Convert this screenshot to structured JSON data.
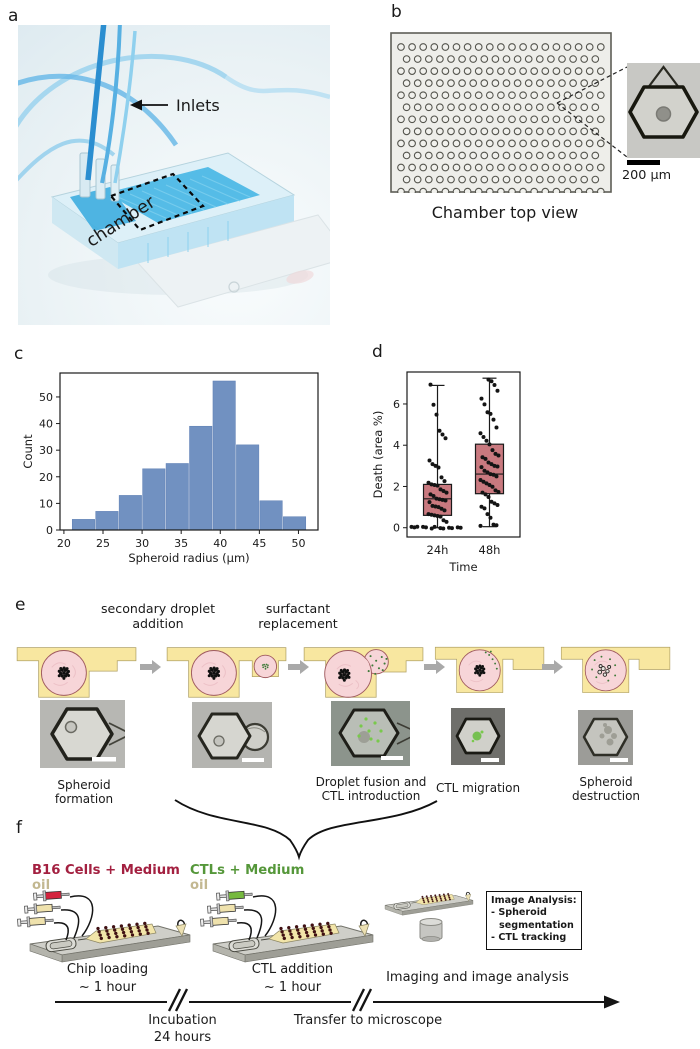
{
  "panels": {
    "a": "a",
    "b": "b",
    "c": "c",
    "d": "d",
    "e": "e",
    "f": "f"
  },
  "panel_a": {
    "inlets_label": "Inlets",
    "chamber_label": "chamber"
  },
  "panel_b": {
    "caption": "Chamber top view",
    "scale_bar_label": "200 µm",
    "anchor_array": {
      "rows": 13,
      "cols": 19
    }
  },
  "chart_data": [
    {
      "id": "spheroid-radius-histogram",
      "type": "bar",
      "title": "",
      "xlabel": "Spheroid radius (µm)",
      "ylabel": "Count",
      "bin_start": 21,
      "bin_width": 3,
      "values": [
        4,
        7,
        13,
        23,
        25,
        39,
        56,
        32,
        11,
        5
      ],
      "xticks": [
        20,
        25,
        30,
        35,
        40,
        45,
        50
      ],
      "yticks": [
        0,
        10,
        20,
        30,
        40,
        50
      ],
      "xlim": [
        19.5,
        52.5
      ],
      "ylim": [
        0,
        59
      ],
      "bar_color": "#7191c1"
    },
    {
      "id": "death-boxplot",
      "type": "box",
      "title": "",
      "xlabel": "Time",
      "ylabel": "Death (area %)",
      "categories": [
        "24h",
        "48h"
      ],
      "yticks": [
        0,
        2,
        4,
        6
      ],
      "ylim": [
        -0.45,
        7.55
      ],
      "box_color": "#c9797f",
      "series": [
        {
          "name": "24h",
          "q1": 0.6,
          "median": 1.4,
          "q3": 2.1,
          "whisker_low": 0,
          "whisker_high": 6.9,
          "points": [
            0,
            0,
            0,
            0,
            0,
            0,
            0,
            0,
            0,
            0,
            0,
            0,
            0.05,
            0.3,
            0.4,
            0.5,
            0.55,
            0.6,
            0.65,
            0.7,
            0.8,
            0.9,
            1.0,
            1.05,
            1.1,
            1.2,
            1.3,
            1.35,
            1.4,
            1.45,
            1.5,
            1.6,
            1.7,
            1.8,
            1.9,
            2.0,
            2.05,
            2.1,
            2.2,
            2.3,
            2.4,
            2.9,
            3.0,
            3.1,
            3.3,
            4.3,
            4.5,
            4.7,
            5.5,
            6.0,
            6.9
          ]
        },
        {
          "name": "48h",
          "q1": 1.65,
          "median": 2.6,
          "q3": 4.05,
          "whisker_low": 0.05,
          "whisker_high": 7.25,
          "points": [
            0.05,
            0.1,
            0.15,
            0.5,
            0.7,
            0.9,
            1.0,
            1.1,
            1.2,
            1.3,
            1.45,
            1.6,
            1.7,
            1.75,
            1.85,
            1.95,
            2.05,
            2.15,
            2.25,
            2.35,
            2.45,
            2.55,
            2.6,
            2.7,
            2.8,
            2.9,
            2.95,
            3.0,
            3.1,
            3.2,
            3.3,
            3.4,
            3.5,
            3.6,
            3.8,
            4.0,
            4.2,
            4.4,
            4.6,
            4.9,
            5.2,
            5.5,
            5.6,
            6.0,
            6.3,
            6.6,
            6.9,
            7.1,
            7.2
          ]
        }
      ]
    }
  ],
  "panel_e": {
    "arrow_labels": [
      "secondary droplet addition",
      "surfactant replacement"
    ],
    "stage_labels": [
      "Spheroid formation",
      "",
      "Droplet fusion and CTL introduction",
      "CTL migration",
      "Spheroid destruction"
    ],
    "trap_color": "#f8e7a0",
    "droplet_color": "#f7d5d8",
    "ctl_color": "#3e7a38"
  },
  "panel_f": {
    "group1": {
      "line1": "B16 Cells + Medium",
      "line2": "oil",
      "caption": "Chip loading",
      "duration": "~ 1 hour",
      "label_color": "#a32040",
      "oil_color": "#c3b891"
    },
    "group2": {
      "line1": "CTLs + Medium",
      "line2": "oil",
      "caption": "CTL addition",
      "duration": "~ 1 hour",
      "label_color": "#55973a",
      "oil_color": "#c3b891"
    },
    "group3": {
      "caption": "Imaging and image analysis"
    },
    "analysis_box": {
      "title": "Image Analysis:",
      "items": [
        "- Spheroid segmentation",
        "- CTL tracking"
      ]
    },
    "timeline": {
      "label1": "Incubation",
      "label1b": "24 hours",
      "label2": "Transfer to microscope"
    }
  }
}
